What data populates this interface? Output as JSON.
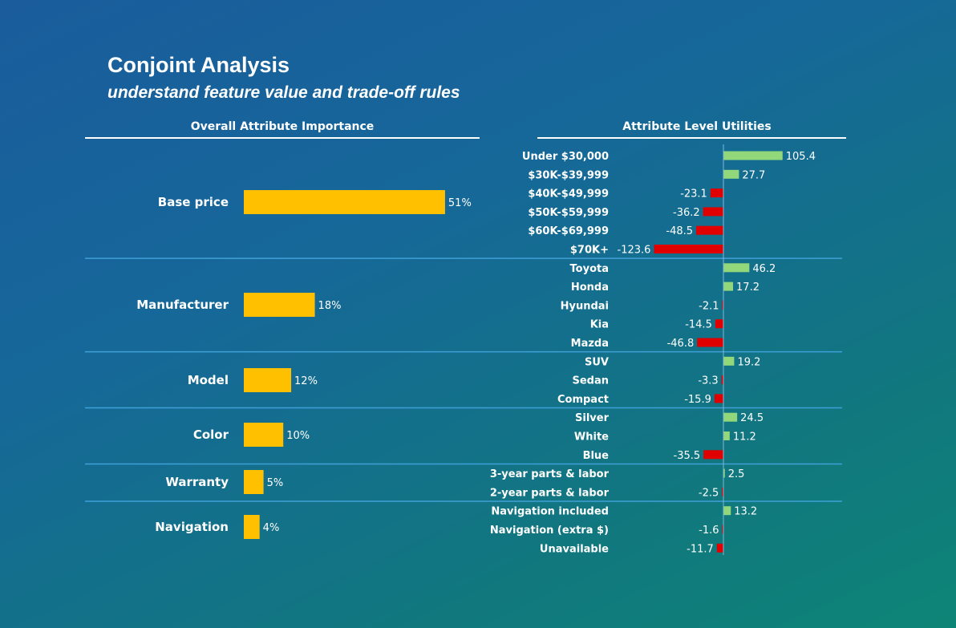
{
  "header": {
    "title": "Conjoint Analysis",
    "subtitle": "understand feature value and trade-off rules"
  },
  "colors": {
    "importance_bar": "#ffc000",
    "positive_bar": "#92d77a",
    "negative_bar": "#e00000",
    "separator": "#3fa0d8"
  },
  "chart_data": [
    {
      "type": "bar",
      "orientation": "horizontal",
      "title": "Overall Attribute Importance",
      "categories": [
        "Base price",
        "Manufacturer",
        "Model",
        "Color",
        "Warranty",
        "Navigation"
      ],
      "values": [
        51,
        18,
        12,
        10,
        5,
        4
      ],
      "value_labels": [
        "51%",
        "18%",
        "12%",
        "10%",
        "5%",
        "4%"
      ],
      "unit": "%",
      "grid": false
    },
    {
      "type": "bar",
      "orientation": "horizontal",
      "title": "Attribute Level Utilities",
      "groups": [
        {
          "attribute": "Base price",
          "levels": [
            "Under $30,000",
            "$30K-$39,999",
            "$40K-$49,999",
            "$50K-$59,999",
            "$60K-$69,999",
            "$70K+"
          ],
          "values": [
            105.4,
            27.7,
            -23.1,
            -36.2,
            -48.5,
            -123.6
          ]
        },
        {
          "attribute": "Manufacturer",
          "levels": [
            "Toyota",
            "Honda",
            "Hyundai",
            "Kia",
            "Mazda"
          ],
          "values": [
            46.2,
            17.2,
            -2.1,
            -14.5,
            -46.8
          ]
        },
        {
          "attribute": "Model",
          "levels": [
            "SUV",
            "Sedan",
            "Compact"
          ],
          "values": [
            19.2,
            -3.3,
            -15.9
          ]
        },
        {
          "attribute": "Color",
          "levels": [
            "Silver",
            "White",
            "Blue"
          ],
          "values": [
            24.5,
            11.2,
            -35.5
          ]
        },
        {
          "attribute": "Warranty",
          "levels": [
            "3-year parts & labor",
            "2-year parts & labor"
          ],
          "values": [
            2.5,
            -2.5
          ]
        },
        {
          "attribute": "Navigation",
          "levels": [
            "Navigation included",
            "Navigation (extra $)",
            "Unavailable"
          ],
          "values": [
            13.2,
            -1.6,
            -11.7
          ]
        }
      ],
      "grid": false
    }
  ]
}
